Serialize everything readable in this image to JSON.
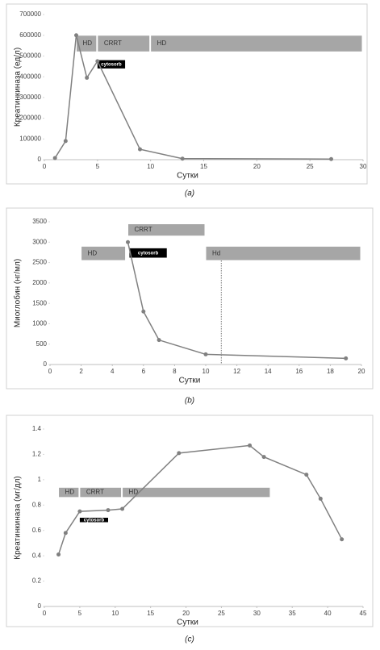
{
  "chart_data": [
    {
      "type": "line",
      "caption": "(a)",
      "ylabel": "Креатинкиназа (ед/л)",
      "xlabel": "Сутки",
      "x": [
        1,
        2,
        3,
        4,
        5,
        9,
        13,
        27
      ],
      "values": [
        8000,
        90000,
        600000,
        395000,
        475000,
        50000,
        5000,
        3000
      ],
      "color": "#808080",
      "xlim": [
        0,
        30
      ],
      "xticks": [
        0,
        5,
        10,
        15,
        20,
        25,
        30
      ],
      "ylim": [
        0,
        700000
      ],
      "yticks": [
        0,
        100000,
        200000,
        300000,
        400000,
        500000,
        600000,
        700000
      ],
      "bands": [
        {
          "label": "HD",
          "x": [
            3,
            5
          ],
          "y": [
            520000,
            600000
          ]
        },
        {
          "label": "CRRT",
          "x": [
            5,
            10
          ],
          "y": [
            520000,
            600000
          ]
        },
        {
          "label": "HD",
          "x": [
            10,
            30
          ],
          "y": [
            520000,
            600000
          ]
        }
      ],
      "cytosorb": {
        "label": "cytosorb",
        "x": [
          5,
          7.6
        ],
        "y": [
          440000,
          480000
        ]
      }
    },
    {
      "type": "line",
      "caption": "(b)",
      "ylabel": "Миоглобин (нг/мл)",
      "xlabel": "Сутки",
      "x": [
        5,
        6,
        7,
        10,
        19
      ],
      "values": [
        3000,
        1300,
        600,
        250,
        150
      ],
      "color": "#808080",
      "xlim": [
        0,
        20
      ],
      "xticks": [
        0,
        2,
        4,
        6,
        8,
        10,
        12,
        14,
        16,
        18,
        20
      ],
      "ylim": [
        0,
        3500
      ],
      "yticks": [
        0,
        500,
        1000,
        1500,
        2000,
        2500,
        3000,
        3500
      ],
      "bands": [
        {
          "label": "HD",
          "x": [
            2,
            4.9
          ],
          "y": [
            2550,
            2900
          ]
        },
        {
          "label": "CRRT",
          "x": [
            5,
            10
          ],
          "y": [
            3150,
            3450
          ]
        },
        {
          "label": "Hd",
          "x": [
            10,
            20
          ],
          "y": [
            2550,
            2900
          ]
        }
      ],
      "cytosorb": {
        "label": "cytosorb",
        "x": [
          5.1,
          7.5
        ],
        "y": [
          2620,
          2850
        ]
      },
      "vline": 11
    },
    {
      "type": "line",
      "caption": "(c)",
      "ylabel": "Креатинкиназа (мг/дл)",
      "xlabel": "Сутки",
      "x": [
        2,
        3,
        5,
        9,
        11,
        19,
        29,
        31,
        37,
        39,
        42
      ],
      "values": [
        0.41,
        0.58,
        0.75,
        0.76,
        0.77,
        1.21,
        1.27,
        1.18,
        1.04,
        0.85,
        0.53
      ],
      "color": "#808080",
      "xlim": [
        0,
        45
      ],
      "xticks": [
        0,
        5,
        10,
        15,
        20,
        25,
        30,
        35,
        40,
        45
      ],
      "ylim": [
        0,
        1.4
      ],
      "yticks": [
        0,
        0.2,
        0.4,
        0.6,
        0.8,
        1,
        1.2,
        1.4
      ],
      "bands": [
        {
          "label": "HD",
          "x": [
            2,
            5
          ],
          "y": [
            0.86,
            0.94
          ]
        },
        {
          "label": "CRRT",
          "x": [
            5,
            11
          ],
          "y": [
            0.86,
            0.94
          ]
        },
        {
          "label": "HD",
          "x": [
            11,
            32
          ],
          "y": [
            0.86,
            0.94
          ]
        }
      ],
      "cytosorb": {
        "label": "cytosorb",
        "x": [
          5,
          9
        ],
        "y": [
          0.665,
          0.7
        ]
      }
    }
  ]
}
